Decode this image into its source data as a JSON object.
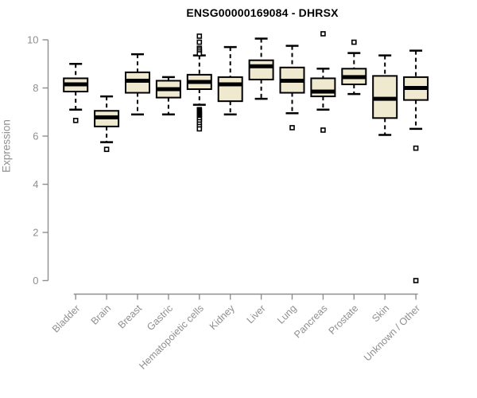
{
  "chart_data": {
    "type": "boxplot",
    "title": "ENSG00000169084 - DHRSX",
    "xlabel": "",
    "ylabel": "Expression",
    "yticks": [
      0,
      2,
      4,
      6,
      8,
      10
    ],
    "ylim": [
      -0.3,
      10.4
    ],
    "grid": false,
    "legend": "none",
    "colors": {
      "box_fill": "#EFE9CF",
      "box_stroke": "#000000",
      "median": "#000000",
      "axis": "#8F8F8F",
      "title": "#000000"
    },
    "categories": [
      "Bladder",
      "Brain",
      "Breast",
      "Gastric",
      "Hematopoietic cells",
      "Kidney",
      "Liver",
      "Lung",
      "Pancreas",
      "Prostate",
      "Skin",
      "Unknown / Other"
    ],
    "boxes": [
      {
        "label": "Bladder",
        "whislo": 7.1,
        "q1": 7.85,
        "med": 8.15,
        "q3": 8.4,
        "whishi": 9.0,
        "outliers": [
          6.65
        ]
      },
      {
        "label": "Brain",
        "whislo": 5.75,
        "q1": 6.4,
        "med": 6.78,
        "q3": 7.05,
        "whishi": 7.65,
        "outliers": [
          5.45
        ]
      },
      {
        "label": "Breast",
        "whislo": 6.9,
        "q1": 7.8,
        "med": 8.3,
        "q3": 8.65,
        "whishi": 9.4,
        "outliers": []
      },
      {
        "label": "Gastric",
        "whislo": 6.9,
        "q1": 7.6,
        "med": 7.95,
        "q3": 8.3,
        "whishi": 8.45,
        "outliers": []
      },
      {
        "label": "Hematopoietic cells",
        "whislo": 7.3,
        "q1": 7.95,
        "med": 8.25,
        "q3": 8.55,
        "whishi": 9.35,
        "outliers": [
          10.15,
          9.9,
          9.65,
          9.58,
          9.5,
          9.42,
          7.1,
          7.05,
          7.0,
          6.95,
          6.9,
          6.85,
          6.8,
          6.75,
          6.7,
          6.6,
          6.5,
          6.4,
          6.3
        ]
      },
      {
        "label": "Kidney",
        "whislo": 6.9,
        "q1": 7.45,
        "med": 8.15,
        "q3": 8.45,
        "whishi": 9.7,
        "outliers": []
      },
      {
        "label": "Liver",
        "whislo": 7.55,
        "q1": 8.35,
        "med": 8.9,
        "q3": 9.15,
        "whishi": 10.05,
        "outliers": []
      },
      {
        "label": "Lung",
        "whislo": 6.95,
        "q1": 7.8,
        "med": 8.3,
        "q3": 8.85,
        "whishi": 9.75,
        "outliers": [
          6.35
        ]
      },
      {
        "label": "Pancreas",
        "whislo": 7.1,
        "q1": 7.65,
        "med": 7.85,
        "q3": 8.4,
        "whishi": 8.8,
        "outliers": [
          10.25,
          6.25
        ]
      },
      {
        "label": "Prostate",
        "whislo": 7.75,
        "q1": 8.15,
        "med": 8.45,
        "q3": 8.8,
        "whishi": 9.45,
        "outliers": [
          9.9
        ]
      },
      {
        "label": "Skin",
        "whislo": 6.05,
        "q1": 6.75,
        "med": 7.55,
        "q3": 8.5,
        "whishi": 9.35,
        "outliers": []
      },
      {
        "label": "Unknown / Other",
        "whislo": 6.3,
        "q1": 7.5,
        "med": 8.0,
        "q3": 8.45,
        "whishi": 9.55,
        "outliers": [
          5.5,
          0.0
        ]
      }
    ]
  }
}
